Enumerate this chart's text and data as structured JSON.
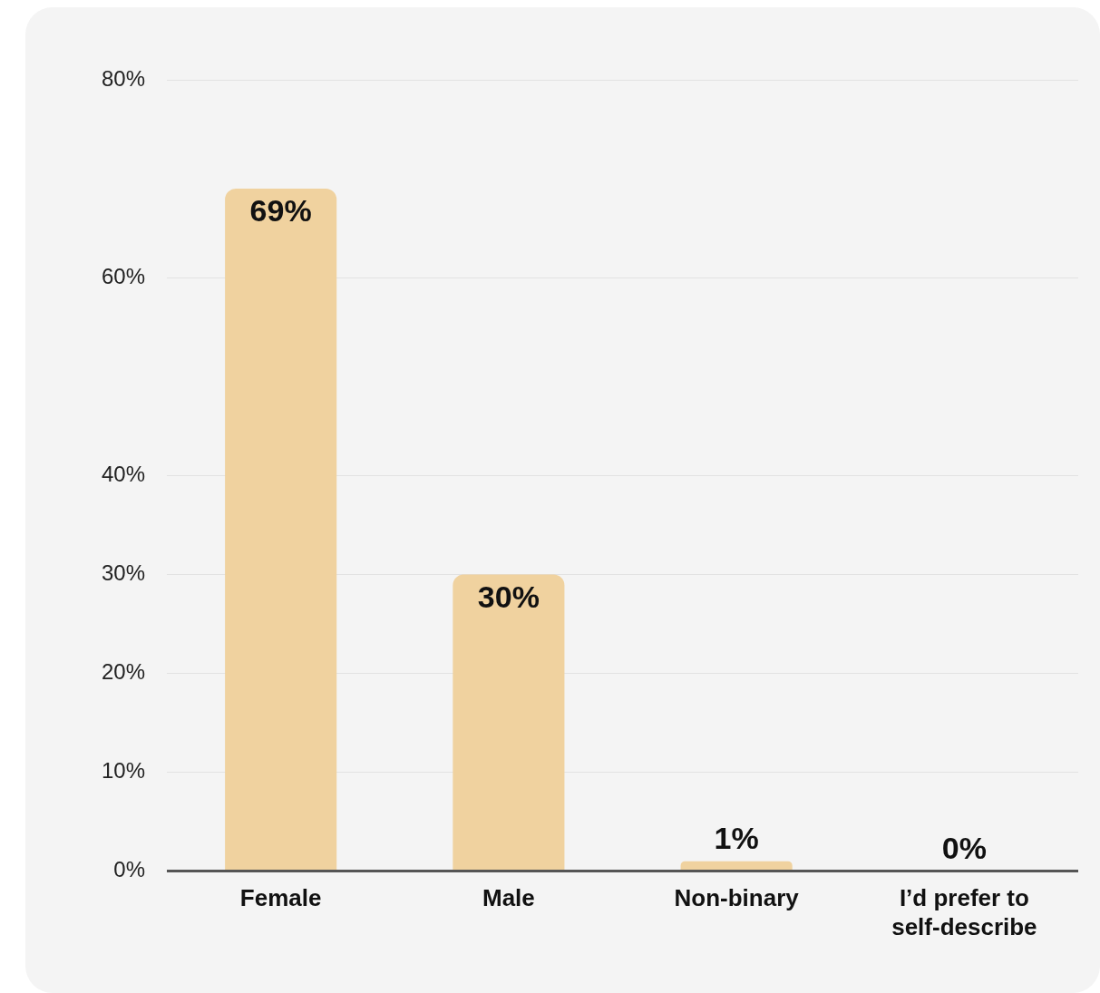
{
  "chart_data": {
    "type": "bar",
    "categories": [
      "Female",
      "Male",
      "Non-binary",
      "I’d prefer to self-describe"
    ],
    "values": [
      69,
      30,
      1,
      0
    ],
    "color": "#f0d29f",
    "value_labels": [
      "69%",
      "30%",
      "1%",
      "0%"
    ],
    "ylim": [
      0,
      80
    ],
    "yticks": [
      {
        "value": 0,
        "label": "0%"
      },
      {
        "value": 10,
        "label": "10%"
      },
      {
        "value": 20,
        "label": "20%"
      },
      {
        "value": 30,
        "label": "30%"
      },
      {
        "value": 40,
        "label": "40%"
      },
      {
        "value": 60,
        "label": "60%"
      },
      {
        "value": 80,
        "label": "80%"
      }
    ],
    "grid": "y",
    "legend": false
  }
}
